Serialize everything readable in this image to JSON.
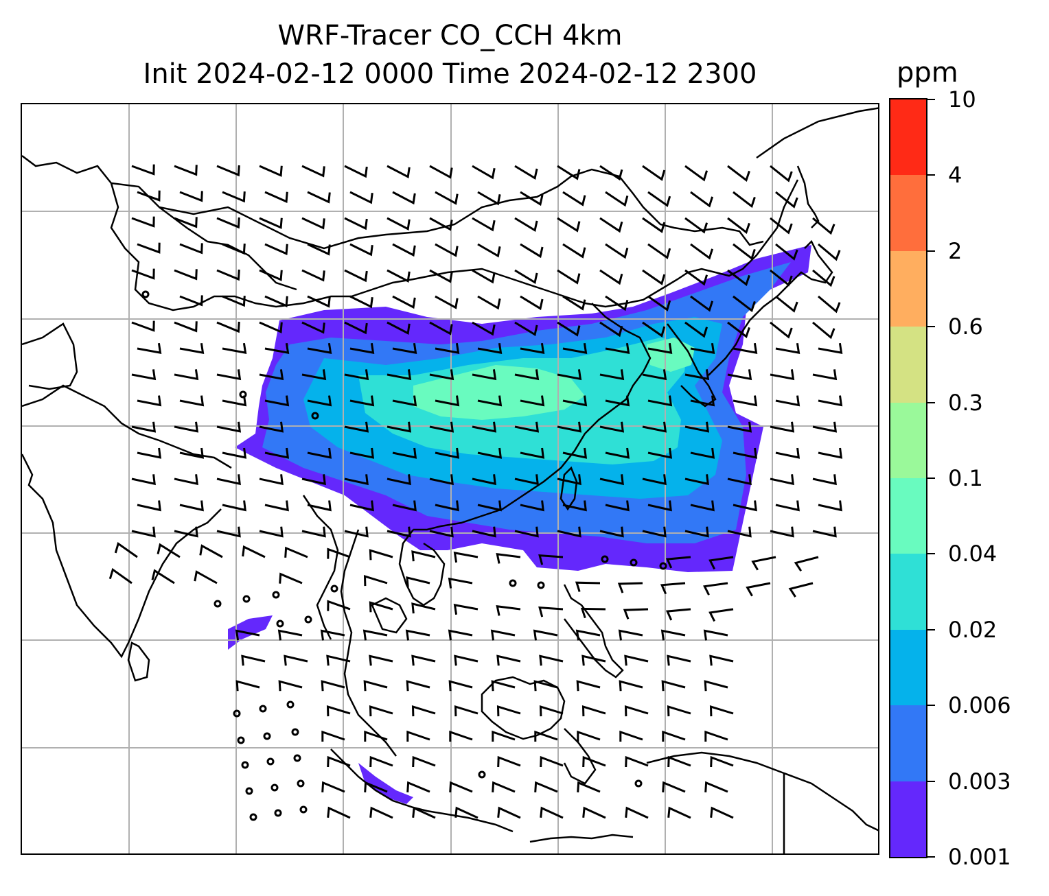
{
  "title": {
    "line1": "WRF-Tracer CO_CCH 4km",
    "line2": "Init 2024-02-12 0000 Time 2024-02-12 2300"
  },
  "colorbar": {
    "unit": "ppm",
    "levels": [
      "0.001",
      "0.003",
      "0.006",
      "0.02",
      "0.04",
      "0.1",
      "0.3",
      "0.6",
      "2",
      "4",
      "10"
    ],
    "colors": [
      "#6428fc",
      "#3278f6",
      "#05b2eb",
      "#2fe0d6",
      "#69fbbf",
      "#9af99a",
      "#d4e283",
      "#ffae5f",
      "#ff6e3c",
      "#ff2a16"
    ]
  },
  "map": {
    "projection": "lat-lon",
    "gridlines": true,
    "coastlines": true,
    "wind_barbs": true,
    "field": "CO tracer concentration"
  }
}
